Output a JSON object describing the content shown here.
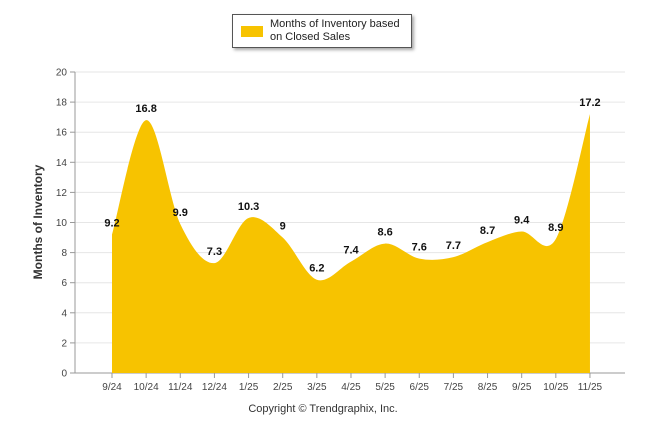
{
  "chart_data": {
    "type": "area",
    "title": "",
    "xlabel": "",
    "ylabel": "Months of Inventory",
    "ylim": [
      0,
      20
    ],
    "yticks": [
      0,
      2,
      4,
      6,
      8,
      10,
      12,
      14,
      16,
      18,
      20
    ],
    "grid": true,
    "legend_position": "top-center",
    "color": "#F7C300",
    "categories": [
      "9/24",
      "10/24",
      "11/24",
      "12/24",
      "1/25",
      "2/25",
      "3/25",
      "4/25",
      "5/25",
      "6/25",
      "7/25",
      "8/25",
      "9/25",
      "10/25",
      "11/25"
    ],
    "series": [
      {
        "name": "Months of Inventory based on Closed Sales",
        "values": [
          9.2,
          16.8,
          9.9,
          7.3,
          10.3,
          9,
          6.2,
          7.4,
          8.6,
          7.6,
          7.7,
          8.7,
          9.4,
          8.9,
          17.2
        ]
      }
    ]
  },
  "legend": {
    "label": "Months of Inventory based on Closed Sales"
  },
  "footer": {
    "copyright": "Copyright © Trendgraphix, Inc."
  }
}
